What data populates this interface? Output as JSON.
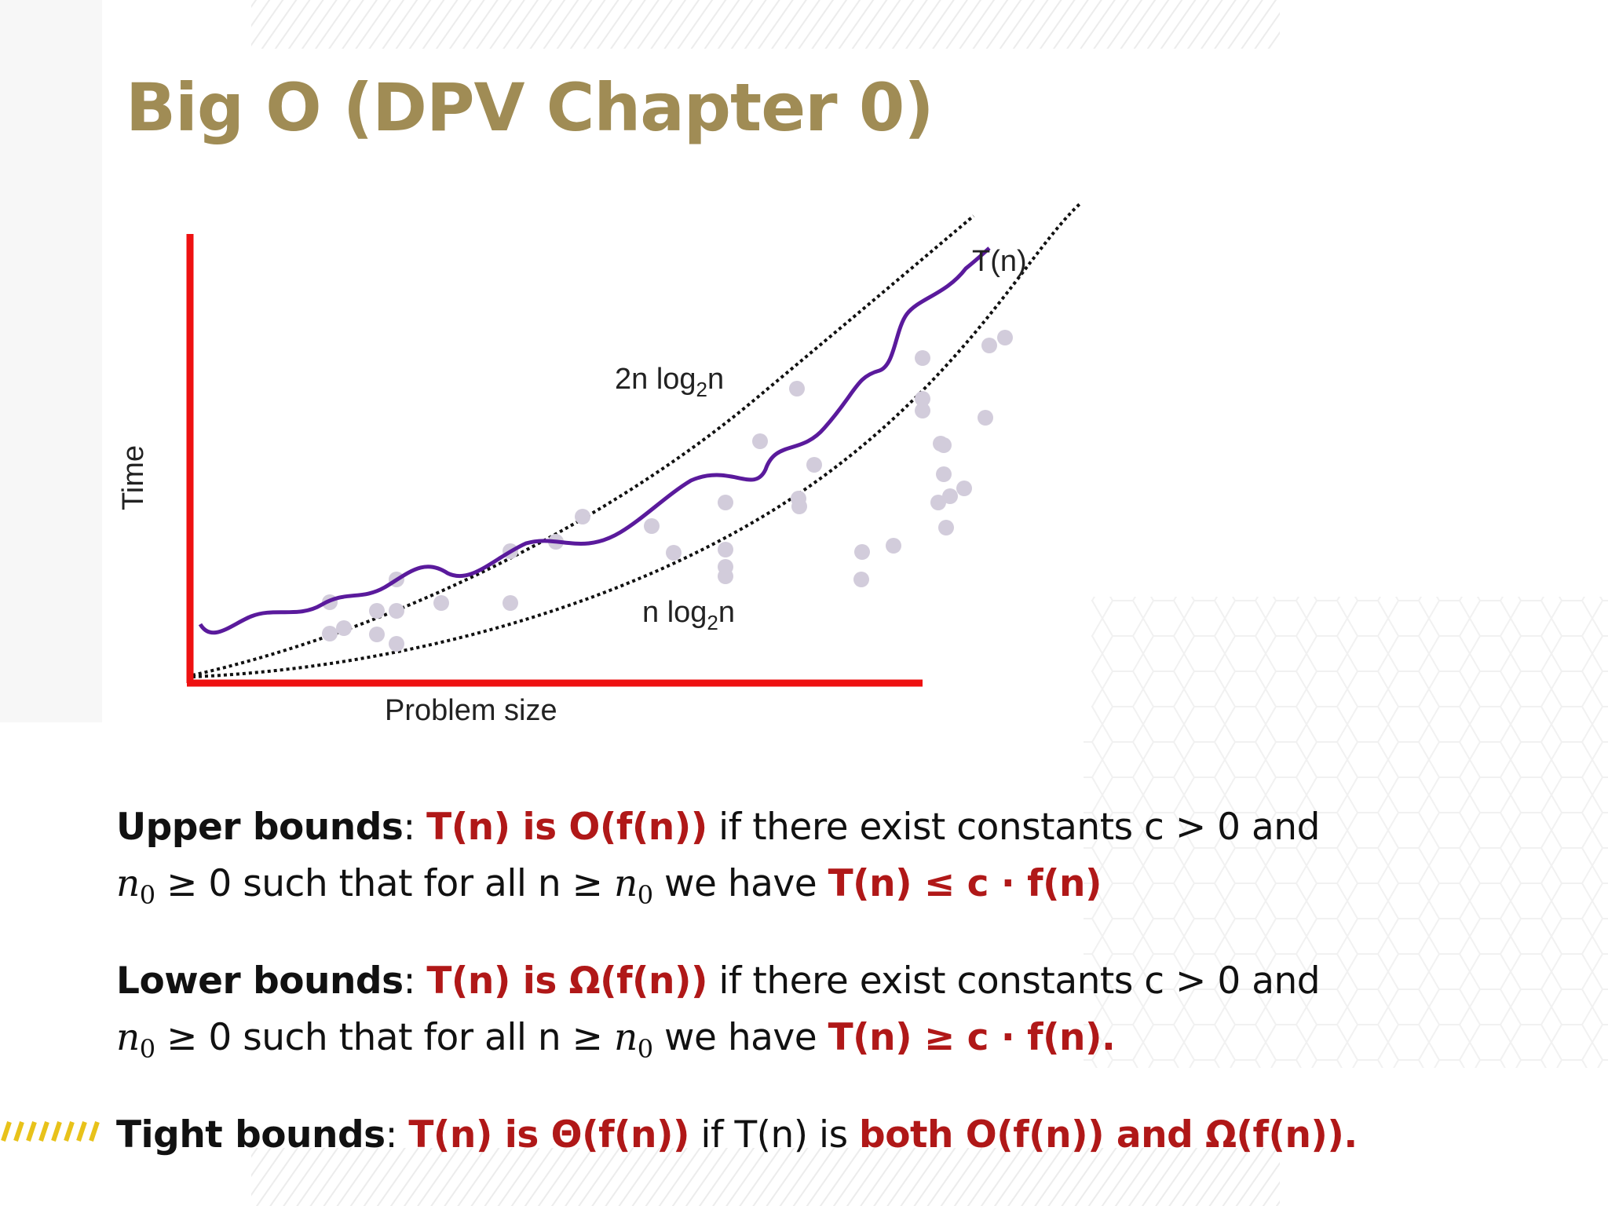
{
  "slide": {
    "title": "Big O (DPV Chapter 0)"
  },
  "figure": {
    "axis_y_label": "Time",
    "axis_x_label": "Problem size",
    "curve_upper_label": "2n log",
    "curve_upper_sub": "2",
    "curve_upper_tail": "n",
    "curve_lower_label": "n log",
    "curve_lower_sub": "2",
    "curve_lower_tail": "n",
    "curve_t_label": "T(n)",
    "colors": {
      "axes": "#ee1111",
      "t_curve": "#5a1a9c",
      "dots": "#d2ccdb",
      "bound_curves": "#111111"
    }
  },
  "definitions": {
    "upper": {
      "term": "Upper bounds",
      "colon": ":",
      "claim": "T(n) is O(f(n))",
      "text1": " if there exist constants c > 0 and",
      "n0": "n",
      "n0_sub": "0",
      "text2": " ≥ 0 such that for all n ≥ ",
      "text3": " we have ",
      "ineq": "T(n) ≤ c · f(n)"
    },
    "lower": {
      "term": "Lower bounds",
      "colon": ":",
      "claim": "T(n) is Ω(f(n))",
      "text1": " if there exist constants c > 0 and",
      "n0": "n",
      "n0_sub": "0",
      "text2": " ≥ 0 such that for all n ≥ ",
      "text3": " we have ",
      "ineq": "T(n) ≥ c · f(n)."
    },
    "tight": {
      "term": "Tight bounds",
      "colon": ":",
      "claim": "T(n) is Θ(f(n))",
      "text1": " if T(n) is ",
      "both": "both O(f(n)) and Ω(f(n))."
    }
  }
}
